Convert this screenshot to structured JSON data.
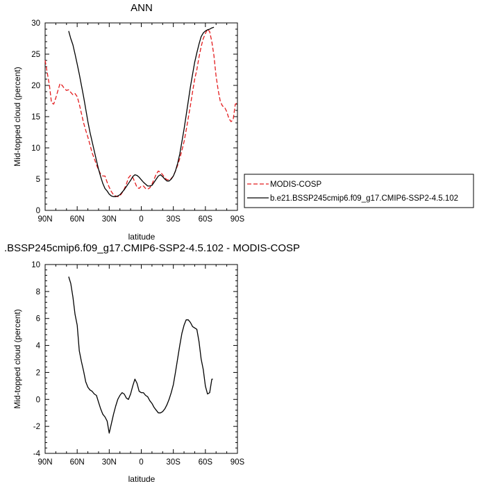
{
  "colors": {
    "model": "#000000",
    "obs": "#e31a1c",
    "frame": "#000000"
  },
  "chart_data": [
    {
      "type": "line",
      "title": "ANN",
      "xlabel": "latitude",
      "ylabel": "Mid-topped cloud (percent)",
      "xlim": [
        90,
        -90
      ],
      "ylim": [
        0,
        30
      ],
      "x_ticks": [
        90,
        60,
        30,
        0,
        -30,
        -60,
        -90
      ],
      "x_tick_labels": [
        "90N",
        "60N",
        "30N",
        "0",
        "30S",
        "60S",
        "90S"
      ],
      "y_ticks": [
        0,
        5,
        10,
        15,
        20,
        25,
        30
      ],
      "y_tick_labels": [
        "0",
        "5",
        "10",
        "15",
        "20",
        "25",
        "30"
      ],
      "grid": false,
      "legend": "right",
      "series": [
        {
          "name": "MODIS-COSP",
          "style": "dashed",
          "color": "#e31a1c",
          "x": [
            90,
            88,
            86,
            84,
            82,
            80,
            78,
            76,
            74,
            72,
            70,
            68,
            66,
            64,
            62,
            60,
            58,
            56,
            54,
            52,
            50,
            48,
            46,
            44,
            42,
            40,
            38,
            36,
            34,
            32,
            30,
            28,
            26,
            24,
            22,
            20,
            18,
            16,
            14,
            12,
            10,
            8,
            6,
            4,
            2,
            0,
            -2,
            -4,
            -6,
            -8,
            -10,
            -12,
            -14,
            -16,
            -18,
            -20,
            -22,
            -24,
            -26,
            -28,
            -30,
            -32,
            -34,
            -36,
            -38,
            -40,
            -42,
            -44,
            -46,
            -48,
            -50,
            -52,
            -54,
            -56,
            -58,
            -60,
            -62,
            -64,
            -66,
            -68,
            -70,
            -72,
            -74,
            -76,
            -78,
            -80,
            -82,
            -84,
            -86,
            -88,
            -90
          ],
          "y": [
            24,
            22,
            20,
            17.2,
            17,
            18,
            19.2,
            20.3,
            20,
            19.5,
            19.2,
            19.3,
            18.9,
            18.5,
            18.7,
            18.2,
            17,
            15.5,
            14,
            12.8,
            11.7,
            10.5,
            9.2,
            8.3,
            7.3,
            6.5,
            5.8,
            5.5,
            5.5,
            4.5,
            3.7,
            3,
            2.5,
            2.3,
            2.2,
            2.3,
            2.8,
            3.4,
            4.2,
            5.2,
            5.6,
            5.3,
            4.5,
            3.7,
            3.5,
            3.9,
            3.9,
            3.5,
            3.4,
            3.6,
            4.2,
            5,
            5.8,
            6.3,
            6.1,
            5.7,
            5.2,
            4.9,
            4.9,
            5.1,
            5.5,
            6.3,
            7.2,
            8.3,
            9.6,
            11,
            12.8,
            14.8,
            16.8,
            19,
            21,
            22.5,
            24.5,
            26.2,
            27.5,
            28.3,
            29,
            28.6,
            27,
            24.8,
            21.5,
            19.2,
            17.4,
            16.7,
            16.5,
            15.8,
            14.7,
            14.2,
            14.5,
            17,
            17.2
          ]
        },
        {
          "name": "b.e21.BSSP245cmip6.f09_g17.CMIP6-SSP2-4.5.102",
          "style": "solid",
          "color": "#000000",
          "x": [
            68,
            66,
            64,
            62,
            60,
            58,
            56,
            54,
            52,
            50,
            48,
            46,
            44,
            42,
            40,
            38,
            36,
            34,
            32,
            30,
            28,
            26,
            24,
            22,
            20,
            18,
            16,
            14,
            12,
            10,
            8,
            6,
            4,
            2,
            0,
            -2,
            -4,
            -6,
            -8,
            -10,
            -12,
            -14,
            -16,
            -18,
            -20,
            -22,
            -24,
            -26,
            -28,
            -30,
            -32,
            -34,
            -36,
            -38,
            -40,
            -42,
            -44,
            -46,
            -48,
            -50,
            -52,
            -54,
            -56,
            -58,
            -60,
            -62,
            -64,
            -66,
            -68
          ],
          "y": [
            28.7,
            27.5,
            26.5,
            25,
            23.4,
            21.8,
            20,
            18.2,
            16.2,
            14.2,
            12.5,
            11,
            9.5,
            8,
            6.6,
            5.4,
            4.3,
            3.5,
            3.1,
            2.6,
            2.3,
            2.2,
            2.2,
            2.3,
            2.5,
            2.9,
            3.3,
            3.8,
            4.3,
            4.8,
            5.4,
            5.7,
            5.6,
            5.3,
            4.9,
            4.5,
            4.2,
            3.9,
            3.9,
            4,
            4.5,
            5,
            5.5,
            5.7,
            5.4,
            5,
            4.7,
            4.7,
            5,
            5.5,
            6.3,
            7.5,
            9,
            11,
            13,
            15.2,
            17.5,
            19.8,
            21.8,
            23.7,
            25.2,
            26.6,
            27.8,
            28.4,
            28.7,
            28.9,
            29,
            29.2,
            29.3
          ]
        }
      ]
    },
    {
      "type": "line",
      "title": ".BSSP245cmip6.f09_g17.CMIP6-SSP2-4.5.102 - MODIS-COSP",
      "xlabel": "latitude",
      "ylabel": "Mid-topped cloud (percent)",
      "xlim": [
        90,
        -90
      ],
      "ylim": [
        -4,
        10
      ],
      "x_ticks": [
        90,
        60,
        30,
        0,
        -30,
        -60,
        -90
      ],
      "x_tick_labels": [
        "90N",
        "60N",
        "30N",
        "0",
        "30S",
        "60S",
        "90S"
      ],
      "y_ticks": [
        -4,
        -2,
        0,
        2,
        4,
        6,
        8,
        10
      ],
      "y_tick_labels": [
        "-4",
        "-2",
        "0",
        "2",
        "4",
        "6",
        "8",
        "10"
      ],
      "grid": false,
      "series": [
        {
          "style": "solid",
          "color": "#000000",
          "x": [
            68,
            66,
            64,
            62,
            60,
            58,
            56,
            54,
            52,
            50,
            48,
            46,
            44,
            42,
            40,
            38,
            36,
            34,
            32,
            30,
            28,
            26,
            24,
            22,
            20,
            18,
            16,
            14,
            12,
            10,
            8,
            6,
            4,
            2,
            0,
            -2,
            -4,
            -6,
            -8,
            -10,
            -12,
            -14,
            -16,
            -18,
            -20,
            -22,
            -24,
            -26,
            -28,
            -30,
            -32,
            -34,
            -36,
            -38,
            -40,
            -42,
            -44,
            -46,
            -48,
            -50,
            -52,
            -54,
            -56,
            -58,
            -60,
            -62,
            -64,
            -66,
            -67
          ],
          "y": [
            9.1,
            8.6,
            7.6,
            6.3,
            5.5,
            3.6,
            2.8,
            2.1,
            1.3,
            0.9,
            0.7,
            0.6,
            0.4,
            0.3,
            -0.2,
            -0.7,
            -1.1,
            -1.3,
            -1.6,
            -2.5,
            -1.8,
            -1.1,
            -0.5,
            0,
            0.3,
            0.5,
            0.4,
            0.1,
            0,
            0.4,
            1,
            1.5,
            1.2,
            0.6,
            0.5,
            0.5,
            0.3,
            0.2,
            -0.1,
            -0.3,
            -0.6,
            -0.8,
            -1,
            -1,
            -0.9,
            -0.7,
            -0.4,
            0,
            0.5,
            1.1,
            2,
            3,
            4,
            4.9,
            5.5,
            5.9,
            5.9,
            5.7,
            5.4,
            5.3,
            5.2,
            4.3,
            3,
            2.2,
            1,
            0.4,
            0.5,
            1.5,
            1.5
          ]
        }
      ]
    }
  ]
}
